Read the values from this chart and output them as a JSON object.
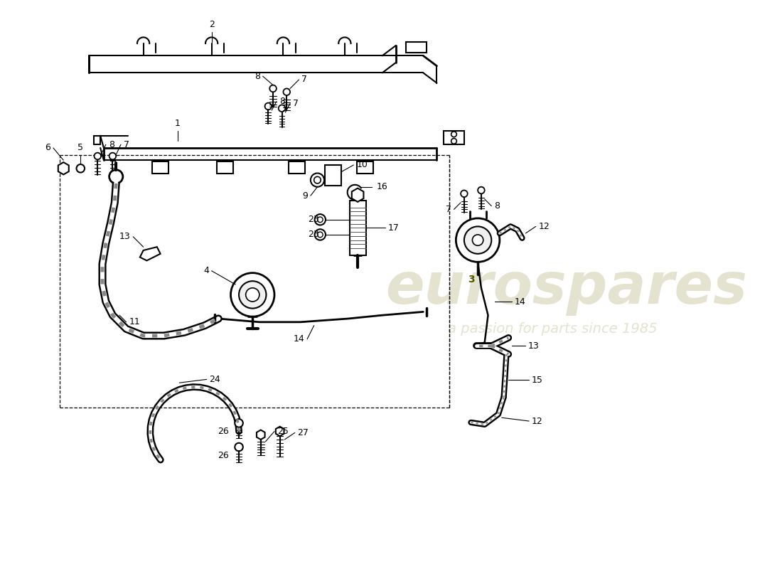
{
  "bg_color": "#ffffff",
  "line_color": "#000000",
  "watermark_text1": "eurospares",
  "watermark_text2": "a passion for parts since 1985",
  "watermark_color1": "#c8c8a0",
  "watermark_color2": "#c8b870"
}
